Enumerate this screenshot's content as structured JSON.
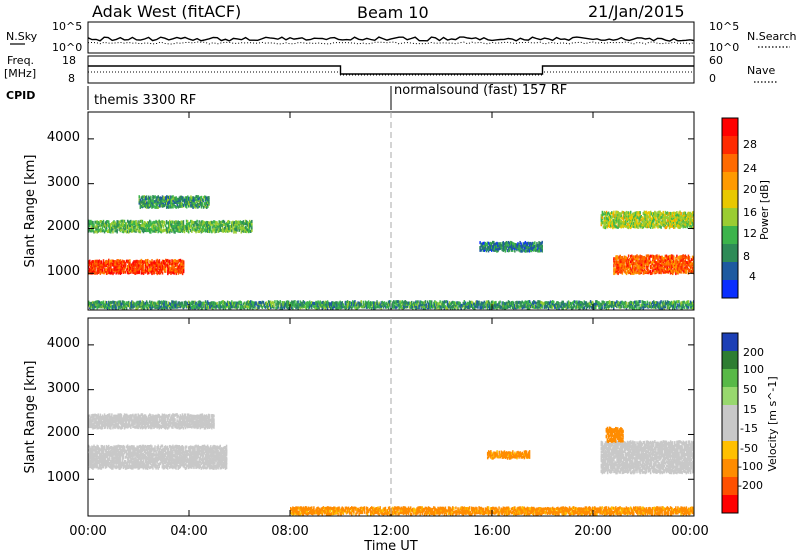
{
  "header": {
    "radar": "Adak West (fitACF)",
    "beam": "Beam 10",
    "date": "21/Jan/2015"
  },
  "top_panels": {
    "nsky_label": "N.Sky",
    "nsky_ticks": [
      "10^5",
      "10^0"
    ],
    "nsearch_label": "N.Search",
    "nsearch_ticks": [
      "10^5",
      "10^0"
    ],
    "freq_label_1": "Freq.",
    "freq_label_2": "[MHz]",
    "freq_ticks": [
      "18",
      "8"
    ],
    "nave_label": "Nave",
    "nave_ticks": [
      "60",
      "0"
    ],
    "cpid_label": "CPID",
    "cpid_modes": [
      {
        "name": "themis 3300 RF",
        "start_hour": 0,
        "end_hour": 12
      },
      {
        "name": "normalsound (fast) 157 RF",
        "start_hour": 12,
        "end_hour": 24
      }
    ]
  },
  "axes": {
    "ylabel": "Slant Range [km]",
    "xlabel": "Time UT",
    "y_ticks": [
      "1000",
      "2000",
      "3000",
      "4000"
    ],
    "x_ticks": [
      "00:00",
      "04:00",
      "08:00",
      "12:00",
      "16:00",
      "20:00",
      "00:00"
    ]
  },
  "colorbars": {
    "power": {
      "title": "Power [dB]",
      "ticks": [
        "28",
        "24",
        "20",
        "16",
        "12",
        "8",
        "4"
      ],
      "colors": [
        "#ff0000",
        "#ff2a00",
        "#ff6a00",
        "#ff9a00",
        "#e8c800",
        "#9acd32",
        "#3cb44b",
        "#2e8b57",
        "#1e5aa0",
        "#0a2fff"
      ]
    },
    "velocity": {
      "title": "Velocity [m s^-1]",
      "ticks": [
        "200",
        "100",
        "50",
        "15",
        "-15",
        "-50",
        "-100",
        "-200"
      ],
      "colors": [
        "#1c3fb5",
        "#2e7d32",
        "#58b947",
        "#98d86e",
        "#c8c8c8",
        "#c8c8c8",
        "#ffc000",
        "#ff8c00",
        "#ff5000",
        "#ff0000"
      ]
    }
  },
  "chart_data": [
    {
      "type": "heatmap",
      "title": "Power [dB]",
      "xlabel": "Time UT",
      "ylabel": "Slant Range [km]",
      "xlim": [
        0,
        24
      ],
      "ylim": [
        180,
        4600
      ],
      "zlim": [
        0,
        30
      ],
      "features": [
        {
          "t_start": 0.0,
          "t_end": 3.8,
          "r_center": 1150,
          "r_width": 300,
          "value": 26
        },
        {
          "t_start": 0.0,
          "t_end": 6.5,
          "r_center": 2050,
          "r_width": 250,
          "value": 10
        },
        {
          "t_start": 2.0,
          "t_end": 4.8,
          "r_center": 2600,
          "r_width": 250,
          "value": 8
        },
        {
          "t_start": 15.5,
          "t_end": 18.0,
          "r_center": 1600,
          "r_width": 200,
          "value": 6
        },
        {
          "t_start": 20.8,
          "t_end": 24.0,
          "r_center": 1200,
          "r_width": 400,
          "value": 24
        },
        {
          "t_start": 20.3,
          "t_end": 24.0,
          "r_center": 2200,
          "r_width": 350,
          "value": 14
        },
        {
          "t_start": 0.0,
          "t_end": 24.0,
          "r_center": 300,
          "r_width": 150,
          "value": 8
        }
      ]
    },
    {
      "type": "heatmap",
      "title": "Velocity [m s^-1]",
      "xlabel": "Time UT",
      "ylabel": "Slant Range [km]",
      "xlim": [
        0,
        24
      ],
      "ylim": [
        180,
        4600
      ],
      "zlim": [
        -200,
        200
      ],
      "features": [
        {
          "t_start": 0.0,
          "t_end": 5.5,
          "r_center": 1500,
          "r_width": 500,
          "value": 0
        },
        {
          "t_start": 0.0,
          "t_end": 5.0,
          "r_center": 2300,
          "r_width": 300,
          "value": 0
        },
        {
          "t_start": 15.8,
          "t_end": 17.5,
          "r_center": 1550,
          "r_width": 150,
          "value": -60
        },
        {
          "t_start": 20.3,
          "t_end": 24.0,
          "r_center": 1500,
          "r_width": 700,
          "value": 0
        },
        {
          "t_start": 20.5,
          "t_end": 21.2,
          "r_center": 2000,
          "r_width": 300,
          "value": -70
        },
        {
          "t_start": 8.0,
          "t_end": 24.0,
          "r_center": 300,
          "r_width": 150,
          "value": -60
        }
      ]
    }
  ]
}
